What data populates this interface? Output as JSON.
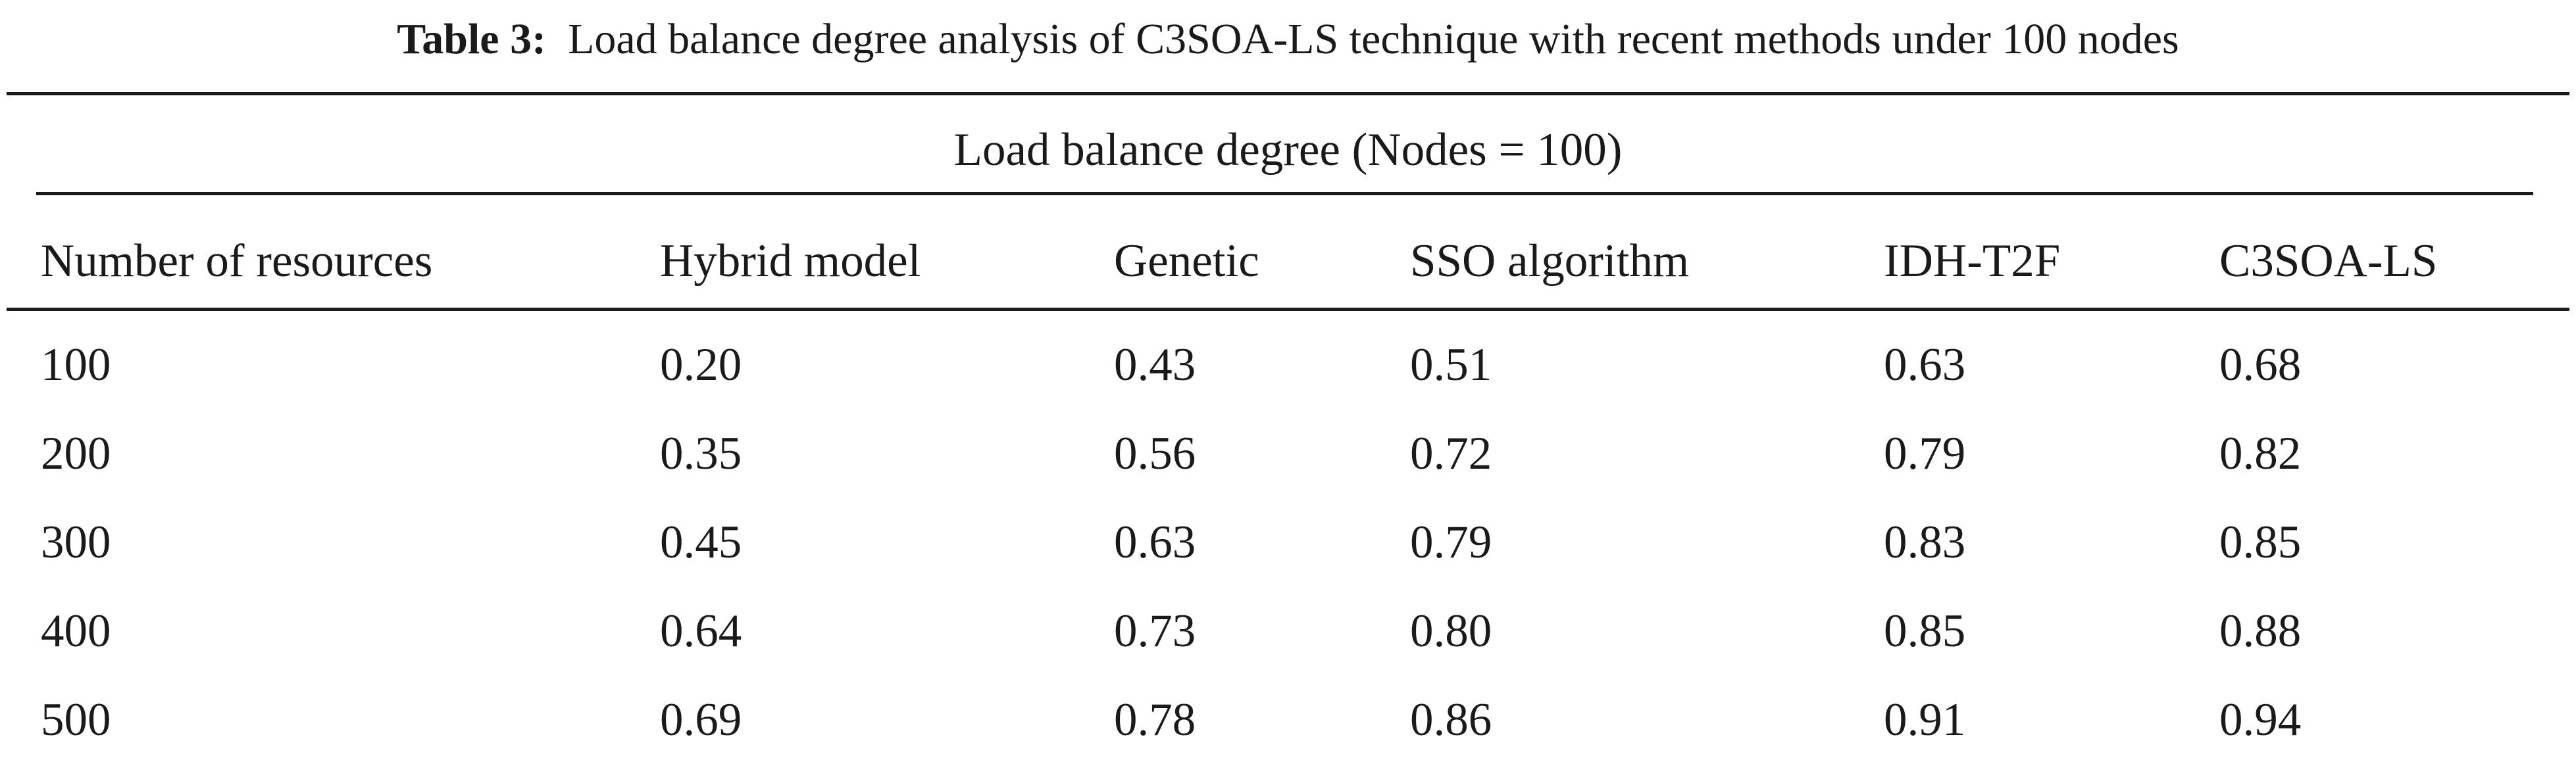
{
  "caption": {
    "label": "Table 3:",
    "text": "Load balance degree analysis of C3SOA-LS technique with recent methods under 100 nodes"
  },
  "table": {
    "group_header": "Load balance degree (Nodes = 100)",
    "columns": [
      "Number of resources",
      "Hybrid model",
      "Genetic",
      "SSO algorithm",
      "IDH-T2F",
      "C3SOA-LS"
    ],
    "rows": [
      [
        "100",
        "0.20",
        "0.43",
        "0.51",
        "0.63",
        "0.68"
      ],
      [
        "200",
        "0.35",
        "0.56",
        "0.72",
        "0.79",
        "0.82"
      ],
      [
        "300",
        "0.45",
        "0.63",
        "0.79",
        "0.83",
        "0.85"
      ],
      [
        "400",
        "0.64",
        "0.73",
        "0.80",
        "0.85",
        "0.88"
      ],
      [
        "500",
        "0.69",
        "0.78",
        "0.86",
        "0.91",
        "0.94"
      ]
    ]
  }
}
